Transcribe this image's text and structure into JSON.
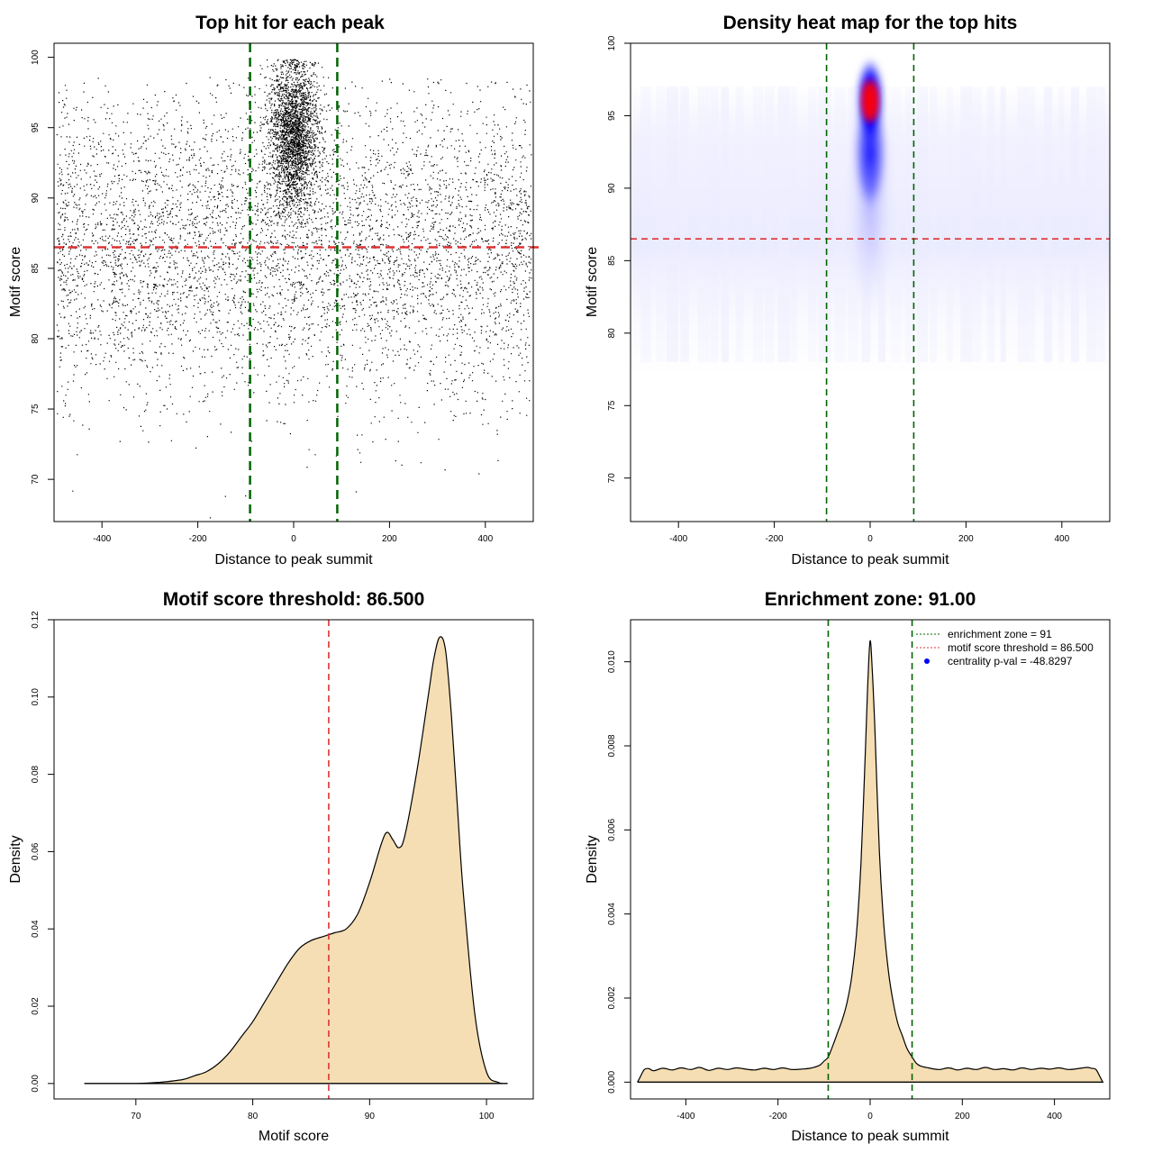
{
  "chart_data": [
    {
      "type": "scatter",
      "title": "Top hit for each peak",
      "xlabel": "Distance to peak summit",
      "ylabel": "Motif score",
      "xlim": [
        -500,
        500
      ],
      "ylim": [
        67,
        101
      ],
      "xticks": [
        "-400",
        "-200",
        "0",
        "200",
        "400"
      ],
      "yticks": [
        "70",
        "75",
        "80",
        "85",
        "90",
        "95",
        "100"
      ],
      "point_color": "#000000",
      "threshold_h": 86.5,
      "threshold_h_color": "#dd3333",
      "zone_v": [
        -91,
        91
      ],
      "zone_color": "#006400",
      "background_points": {
        "x_range": [
          -495,
          495
        ],
        "y_mean": 86.5,
        "y_sd": 5.2,
        "count": 5500
      },
      "cluster_points": {
        "x_center": 0,
        "x_sd": 28,
        "y_mean": 94.5,
        "y_sd": 2.6,
        "count": 6500
      },
      "outliers": [
        {
          "x": -175,
          "y": 67.3
        },
        {
          "x": -320,
          "y": 73.8
        },
        {
          "x": 405,
          "y": 74.0
        },
        {
          "x": -245,
          "y": 74.7
        },
        {
          "x": -460,
          "y": 74.2
        },
        {
          "x": 485,
          "y": 75.8
        },
        {
          "x": 45,
          "y": 75.6
        },
        {
          "x": -22,
          "y": 74.0
        }
      ]
    },
    {
      "type": "heatmap",
      "title": "Density heat map for the top hits",
      "xlabel": "Distance to peak summit",
      "ylabel": "Motif score",
      "xlim": [
        -500,
        500
      ],
      "ylim": [
        67,
        100
      ],
      "xticks": [
        "-400",
        "-200",
        "0",
        "200",
        "400"
      ],
      "yticks": [
        "70",
        "75",
        "80",
        "85",
        "90",
        "95",
        "100"
      ],
      "peak": {
        "x": 0,
        "y": 96
      },
      "color_scale": [
        "#ffffff",
        "#0000ff",
        "#ff0000"
      ],
      "threshold_h": 86.5,
      "threshold_h_color": "#dd3333",
      "zone_v": [
        -91,
        91
      ],
      "zone_color": "#006400"
    },
    {
      "type": "area",
      "title": "Motif score threshold: 86.500",
      "xlabel": "Motif score",
      "ylabel": "Density",
      "xlim": [
        63,
        104
      ],
      "ylim": [
        -0.004,
        0.12
      ],
      "xticks": [
        "70",
        "80",
        "90",
        "100"
      ],
      "yticks": [
        "0.00",
        "0.02",
        "0.04",
        "0.06",
        "0.08",
        "0.10",
        "0.12"
      ],
      "fill": "#f5deb3",
      "threshold_v": 86.5,
      "threshold_color": "#dd3333",
      "x": [
        65.6,
        70,
        72,
        74,
        75,
        76,
        77,
        78,
        79,
        80,
        81,
        82,
        83,
        84,
        85,
        86,
        87,
        88,
        89,
        90,
        91,
        91.5,
        92,
        92.5,
        93,
        94,
        95,
        95.5,
        96,
        96.5,
        97,
        97.5,
        98,
        99,
        100,
        101,
        101.8
      ],
      "y": [
        0.0,
        0.0,
        0.0003,
        0.001,
        0.002,
        0.003,
        0.005,
        0.008,
        0.012,
        0.016,
        0.021,
        0.026,
        0.031,
        0.035,
        0.037,
        0.038,
        0.039,
        0.04,
        0.044,
        0.052,
        0.062,
        0.065,
        0.063,
        0.061,
        0.064,
        0.08,
        0.1,
        0.11,
        0.1155,
        0.112,
        0.095,
        0.072,
        0.05,
        0.018,
        0.003,
        0.0003,
        0.0
      ]
    },
    {
      "type": "area",
      "title": "Enrichment zone: 91.00",
      "xlabel": "Distance to peak summit",
      "ylabel": "Density",
      "xlim": [
        -520,
        520
      ],
      "ylim": [
        -0.0004,
        0.011
      ],
      "xticks": [
        "-400",
        "-200",
        "0",
        "200",
        "400"
      ],
      "yticks": [
        "0.000",
        "0.002",
        "0.004",
        "0.006",
        "0.008",
        "0.010"
      ],
      "fill": "#f5deb3",
      "zone_v": [
        -91,
        91
      ],
      "zone_color": "#006400",
      "x": [
        -505,
        -500,
        -490,
        -480,
        -470,
        -450,
        -430,
        -410,
        -390,
        -370,
        -350,
        -330,
        -310,
        -290,
        -270,
        -250,
        -230,
        -210,
        -190,
        -170,
        -150,
        -130,
        -110,
        -100,
        -91,
        -80,
        -70,
        -60,
        -50,
        -40,
        -30,
        -20,
        -10,
        -5,
        0,
        5,
        10,
        20,
        30,
        40,
        50,
        60,
        70,
        80,
        91,
        100,
        110,
        130,
        150,
        170,
        190,
        210,
        230,
        250,
        270,
        290,
        310,
        330,
        350,
        370,
        390,
        410,
        430,
        450,
        470,
        480,
        490,
        500,
        505
      ],
      "y": [
        0.0,
        0.0001,
        0.0003,
        0.00032,
        0.00027,
        0.00033,
        0.00029,
        0.00034,
        0.0003,
        0.00035,
        0.00028,
        0.00033,
        0.0003,
        0.00034,
        0.00031,
        0.00029,
        0.00033,
        0.0003,
        0.00034,
        0.0003,
        0.00031,
        0.00033,
        0.0004,
        0.0005,
        0.0006,
        0.0009,
        0.0012,
        0.0015,
        0.0019,
        0.0025,
        0.0035,
        0.0052,
        0.008,
        0.0095,
        0.0105,
        0.0097,
        0.0085,
        0.0055,
        0.0037,
        0.0026,
        0.0019,
        0.0014,
        0.0011,
        0.0008,
        0.0006,
        0.00045,
        0.00038,
        0.00033,
        0.0003,
        0.00034,
        0.00029,
        0.00033,
        0.0003,
        0.00035,
        0.0003,
        0.00032,
        0.00029,
        0.00034,
        0.0003,
        0.00033,
        0.00031,
        0.00034,
        0.0003,
        0.00032,
        0.00035,
        0.00033,
        0.0003,
        0.0001,
        0.0
      ],
      "legend": {
        "placement": "top-right",
        "entries": [
          {
            "label": "enrichment zone = 91",
            "color": "#006400",
            "kind": "dotted-line"
          },
          {
            "label": "motif score threshold = 86.500",
            "color": "#dd3333",
            "kind": "dotted-line"
          },
          {
            "label": "centrality p-val = -48.8297",
            "color": "#0000ff",
            "kind": "dot"
          }
        ]
      }
    }
  ]
}
